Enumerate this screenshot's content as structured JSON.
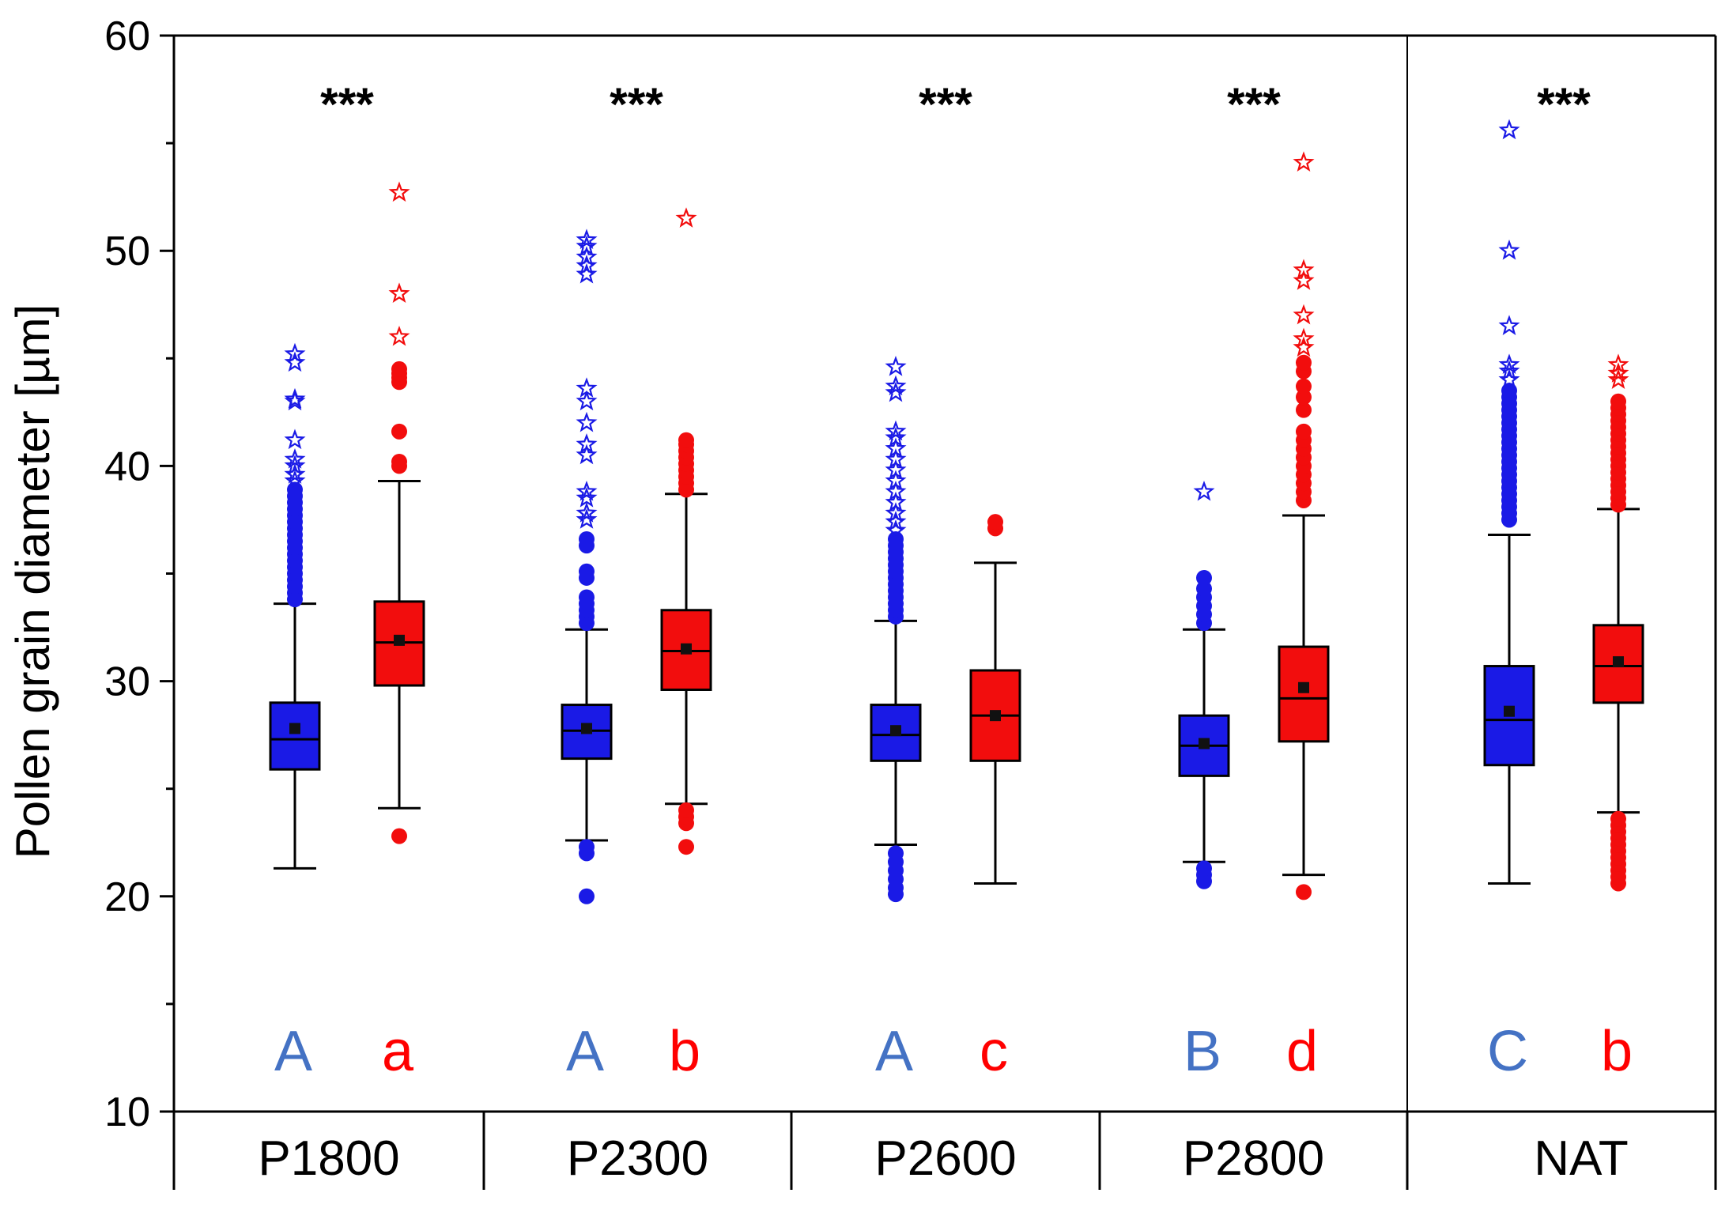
{
  "chart_data": {
    "type": "box",
    "title": "",
    "xlabel": "",
    "ylabel": "Pollen grain diameter [µm]",
    "ylim": [
      10,
      60
    ],
    "yticks": [
      10,
      20,
      30,
      40,
      50,
      60
    ],
    "grid": false,
    "groups": [
      "P1800",
      "P2300",
      "P2600",
      "P2800",
      "NAT"
    ],
    "significance": [
      "***",
      "***",
      "***",
      "***",
      "***"
    ],
    "colors": {
      "blue": "#1a1ae6",
      "red": "#f20d0d",
      "blue_letter": "#4472c4",
      "red_letter": "#ff0000",
      "black": "#000000"
    },
    "series": [
      {
        "name": "blue",
        "color": "#1a1ae6",
        "letters": [
          "A",
          "A",
          "A",
          "B",
          "C"
        ],
        "boxes": [
          {
            "q1": 25.9,
            "median": 27.3,
            "q3": 29.0,
            "mean": 27.8,
            "whisker_low": 21.3,
            "whisker_high": 33.6,
            "outliers_high": [
              33.8,
              34.1,
              34.4,
              34.7,
              35.0,
              35.3,
              35.6,
              35.9,
              36.2,
              36.5,
              36.8,
              37.1,
              37.4,
              37.7,
              38.0,
              38.3,
              38.6,
              38.9
            ],
            "outliers_low": [],
            "extremes": [
              39.3,
              39.6,
              40.0,
              40.3,
              41.2,
              43.0,
              43.1,
              44.8,
              45.2
            ]
          },
          {
            "q1": 26.4,
            "median": 27.7,
            "q3": 28.9,
            "mean": 27.8,
            "whisker_low": 22.6,
            "whisker_high": 32.4,
            "outliers_high": [
              32.7,
              33.0,
              33.3,
              33.6,
              33.9,
              34.8,
              35.1,
              36.3,
              36.6
            ],
            "outliers_low": [
              22.0,
              22.3,
              20.0
            ],
            "extremes": [
              37.5,
              37.8,
              38.5,
              38.8,
              40.5,
              41.0,
              42.0,
              43.0,
              43.6,
              48.9,
              49.3,
              49.7,
              50.2,
              50.5
            ]
          },
          {
            "q1": 26.3,
            "median": 27.5,
            "q3": 28.9,
            "mean": 27.7,
            "whisker_low": 22.4,
            "whisker_high": 32.8,
            "outliers_high": [
              33.0,
              33.3,
              33.6,
              33.9,
              34.2,
              34.5,
              34.8,
              35.1,
              35.4,
              35.7,
              36.0,
              36.3,
              36.6
            ],
            "outliers_low": [
              20.1,
              20.4,
              20.8,
              21.2,
              21.6,
              22.0
            ],
            "extremes": [
              37.0,
              37.4,
              37.8,
              38.3,
              38.8,
              39.3,
              39.8,
              40.3,
              40.8,
              41.3,
              41.6,
              43.4,
              43.7,
              44.6
            ]
          },
          {
            "q1": 25.6,
            "median": 27.0,
            "q3": 28.4,
            "mean": 27.1,
            "whisker_low": 21.6,
            "whisker_high": 32.4,
            "outliers_high": [
              32.7,
              33.1,
              33.5,
              33.9,
              34.3,
              34.8
            ],
            "outliers_low": [
              20.7,
              21.0,
              21.3
            ],
            "extremes": [
              38.8
            ]
          },
          {
            "q1": 26.1,
            "median": 28.2,
            "q3": 30.7,
            "mean": 28.6,
            "whisker_low": 20.6,
            "whisker_high": 36.8,
            "outliers_high": [
              37.5,
              37.8,
              38.1,
              38.4,
              38.7,
              39.0,
              39.3,
              39.6,
              39.9,
              40.2,
              40.5,
              40.8,
              41.1,
              41.4,
              41.7,
              42.0,
              42.3,
              42.6,
              42.9,
              43.2,
              43.5
            ],
            "outliers_low": [],
            "extremes": [
              44.0,
              44.4,
              44.7,
              46.5,
              50.0,
              55.6
            ]
          }
        ]
      },
      {
        "name": "red",
        "color": "#f20d0d",
        "letters": [
          "a",
          "b",
          "c",
          "d",
          "b"
        ],
        "boxes": [
          {
            "q1": 29.8,
            "median": 31.8,
            "q3": 33.7,
            "mean": 31.9,
            "whisker_low": 24.1,
            "whisker_high": 39.3,
            "outliers_high": [
              40.0,
              40.2,
              41.6,
              43.9,
              44.1,
              44.3,
              44.5
            ],
            "outliers_low": [
              22.8
            ],
            "extremes": [
              46.0,
              48.0,
              52.7
            ]
          },
          {
            "q1": 29.6,
            "median": 31.4,
            "q3": 33.3,
            "mean": 31.5,
            "whisker_low": 24.3,
            "whisker_high": 38.7,
            "outliers_high": [
              38.9,
              39.2,
              39.5,
              39.8,
              40.1,
              40.4,
              40.7,
              41.0,
              41.2
            ],
            "outliers_low": [
              23.4,
              23.7,
              24.0,
              22.3
            ],
            "extremes": [
              51.5
            ]
          },
          {
            "q1": 26.3,
            "median": 28.4,
            "q3": 30.5,
            "mean": 28.4,
            "whisker_low": 20.6,
            "whisker_high": 35.5,
            "outliers_high": [
              37.1,
              37.4
            ],
            "outliers_low": [],
            "extremes": []
          },
          {
            "q1": 27.2,
            "median": 29.2,
            "q3": 31.6,
            "mean": 29.7,
            "whisker_low": 21.0,
            "whisker_high": 37.7,
            "outliers_high": [
              38.4,
              38.8,
              39.2,
              39.6,
              40.0,
              40.4,
              40.8,
              41.2,
              41.6,
              42.6,
              43.2,
              43.7,
              44.4,
              44.8
            ],
            "outliers_low": [
              20.2
            ],
            "extremes": [
              45.5,
              45.9,
              47.0,
              48.6,
              49.1,
              54.1
            ]
          },
          {
            "q1": 29.0,
            "median": 30.7,
            "q3": 32.6,
            "mean": 30.9,
            "whisker_low": 23.9,
            "whisker_high": 38.0,
            "outliers_high": [
              38.2,
              38.5,
              38.8,
              39.1,
              39.4,
              39.7,
              40.0,
              40.3,
              40.6,
              40.9,
              41.2,
              41.5,
              41.8,
              42.1,
              42.4,
              42.7,
              43.0
            ],
            "outliers_low": [
              20.6,
              20.9,
              21.2,
              21.5,
              21.8,
              22.1,
              22.4,
              22.7,
              23.0,
              23.3,
              23.6
            ],
            "extremes": [
              44.0,
              44.3,
              44.7
            ]
          }
        ]
      }
    ]
  }
}
